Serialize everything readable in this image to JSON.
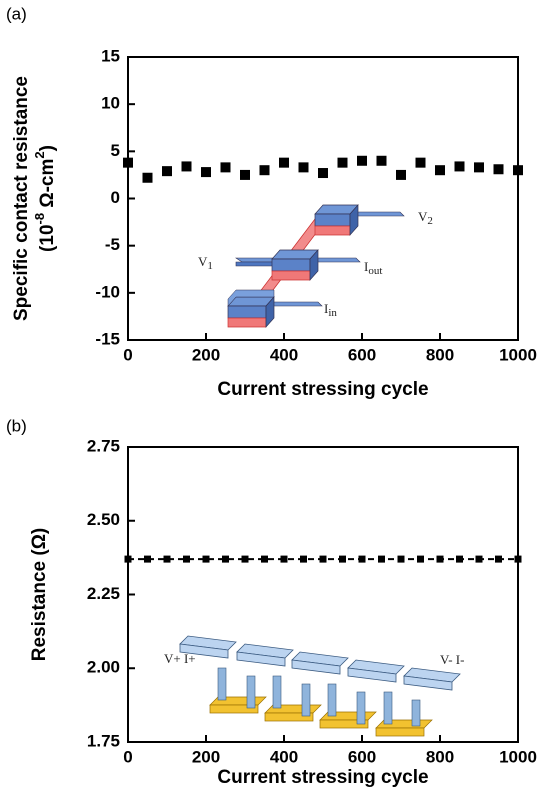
{
  "chart_data": [
    {
      "type": "scatter",
      "panel": "(a)",
      "xlabel": "Current stressing cycle",
      "ylabel": "Specific contact resistance",
      "ylabel_unit": [
        "(10",
        "-8",
        " Ω-cm",
        "2",
        ")"
      ],
      "x": [
        0,
        50,
        100,
        150,
        200,
        250,
        300,
        350,
        400,
        450,
        500,
        550,
        600,
        650,
        700,
        750,
        800,
        850,
        900,
        950,
        1000
      ],
      "values": [
        3.8,
        2.2,
        2.9,
        3.4,
        2.8,
        3.3,
        2.5,
        3.0,
        3.8,
        3.3,
        2.7,
        3.8,
        4.0,
        4.0,
        2.5,
        3.8,
        3.0,
        3.4,
        3.3,
        3.1,
        3.0
      ],
      "color": "#000000",
      "line": false,
      "xlim": [
        0,
        1000
      ],
      "xticks": [
        0,
        200,
        400,
        600,
        800,
        1000
      ],
      "ylim": [
        -15,
        15
      ],
      "yticks": [
        -15,
        -10,
        -5,
        0,
        5,
        10,
        15
      ],
      "annotations": [
        {
          "text": "V",
          "sub": "2"
        },
        {
          "text": "V",
          "sub": "1"
        },
        {
          "text": "I",
          "sub": "out"
        },
        {
          "text": "I",
          "sub": "in"
        }
      ]
    },
    {
      "type": "scatter",
      "panel": "(b)",
      "xlabel": "Current stressing cycle",
      "ylabel": "Resistance (Ω)",
      "x": [
        0,
        50,
        100,
        150,
        200,
        250,
        300,
        350,
        400,
        450,
        500,
        550,
        600,
        650,
        700,
        750,
        800,
        850,
        900,
        950,
        1000
      ],
      "values": [
        2.37,
        2.37,
        2.37,
        2.37,
        2.37,
        2.37,
        2.37,
        2.37,
        2.37,
        2.37,
        2.37,
        2.37,
        2.37,
        2.37,
        2.37,
        2.37,
        2.37,
        2.37,
        2.37,
        2.37,
        2.37
      ],
      "color": "#000000",
      "line": true,
      "dashed": true,
      "xlim": [
        0,
        1000
      ],
      "xticks": [
        0,
        200,
        400,
        600,
        800,
        1000
      ],
      "ylim": [
        1.75,
        2.75
      ],
      "yticks": [
        1.75,
        {
          "value": 2.0,
          "label": "2.00"
        },
        2.25,
        {
          "value": 2.5,
          "label": "2.50"
        },
        2.75
      ],
      "annotations": [
        {
          "text": "V+ I+"
        },
        {
          "text": "V- I-"
        }
      ]
    }
  ]
}
